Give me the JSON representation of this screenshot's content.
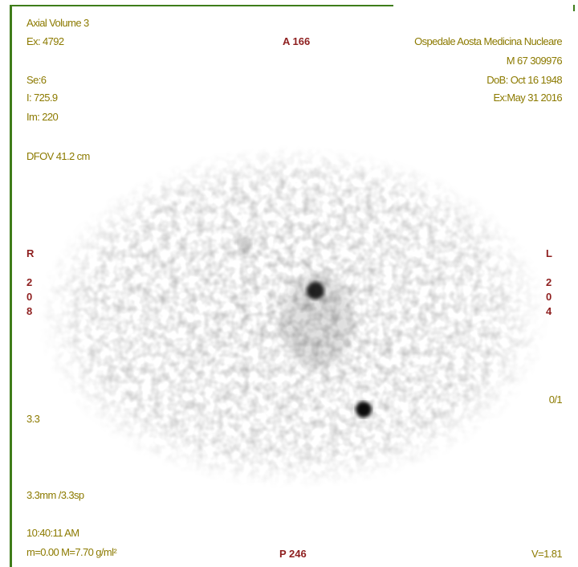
{
  "overlay": {
    "top_left": [
      "Axial Volume 3",
      "Ex: 4792",
      "Se:6",
      "I: 725.9",
      "Im: 220",
      "DFOV 41.2 cm"
    ],
    "anterior": "A 166",
    "top_right": [
      "Ospedale Aosta Medicina Nucleare",
      "M 67 309976",
      "DoB: Oct 16 1948",
      "Ex:May 31 2016"
    ],
    "left_side": {
      "letter": "R",
      "digits": [
        "2",
        "0",
        "8"
      ]
    },
    "right_side": {
      "letter": "L",
      "digits": [
        "2",
        "0",
        "4"
      ]
    },
    "frame": "0/1",
    "thickness": "3.3",
    "slice_spacing": "3.3mm /3.3sp",
    "time": "10:40:11 AM",
    "window": "m=0.00 M=7.70 g/ml²",
    "posterior": "P 246",
    "zoom": "V=1.81"
  }
}
